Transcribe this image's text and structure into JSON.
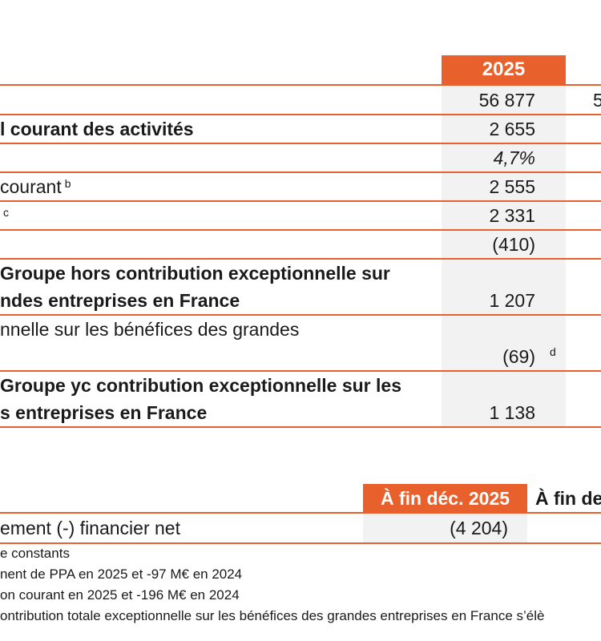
{
  "table1": {
    "header_year": "2025",
    "rows": [
      {
        "label": "",
        "value": "56 877",
        "right_cut": "5"
      },
      {
        "label": "l courant des activités",
        "value": "2 655"
      },
      {
        "label": "",
        "value": "4,7%"
      },
      {
        "label": "courant",
        "note": "b",
        "value": "2 555"
      },
      {
        "label": "",
        "note": "c",
        "value": "2 331"
      },
      {
        "label": "",
        "value": "(410)"
      },
      {
        "label_line1": "Groupe hors contribution exceptionnelle sur",
        "label_line2": "ndes entreprises en France",
        "value": "1 207"
      },
      {
        "label_line1": "nnelle sur les bénéfices des grandes",
        "value": "(69)",
        "note": "d"
      },
      {
        "label_line1": "Groupe yc contribution exceptionnelle sur les",
        "label_line2": "s entreprises en France",
        "value": "1 138"
      }
    ]
  },
  "table2": {
    "header_col1": "À fin déc. 2025",
    "header_col2": "À fin de",
    "row_label": "ement (-) financier net",
    "row_value": "(4 204)"
  },
  "footnotes": [
    "e constants",
    "nent de PPA en 2025 et -97 M€ en 2024",
    "on courant en 2025 et -196 M€ en 2024",
    "ontribution totale exceptionnelle sur les bénéfices des grandes entreprises en France s’élè"
  ],
  "colors": {
    "accent": "#e8612c",
    "cell_background": "#f2f2f2"
  }
}
